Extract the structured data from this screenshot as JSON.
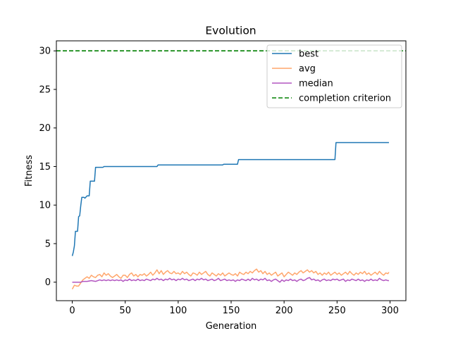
{
  "chart_data": {
    "type": "line",
    "title": "Evolution",
    "xlabel": "Generation",
    "ylabel": "Fitness",
    "xlim": [
      -15,
      315
    ],
    "ylim": [
      -2.4,
      31.3
    ],
    "xticks": [
      0,
      50,
      100,
      150,
      200,
      250,
      300
    ],
    "yticks": [
      0,
      5,
      10,
      15,
      20,
      25,
      30
    ],
    "grid": false,
    "legend_position": "top-right",
    "threshold": {
      "name": "completion criterion",
      "value": 30,
      "color": "#008000",
      "style": "dashed"
    },
    "series": [
      {
        "name": "best",
        "color": "#1f77b4",
        "points": [
          [
            0,
            3.4
          ],
          [
            1,
            3.9
          ],
          [
            2,
            4.7
          ],
          [
            3,
            6.6
          ],
          [
            5,
            6.6
          ],
          [
            6,
            8.5
          ],
          [
            7,
            8.6
          ],
          [
            8,
            9.9
          ],
          [
            9,
            11.0
          ],
          [
            11,
            11.0
          ],
          [
            12,
            10.9
          ],
          [
            14,
            11.2
          ],
          [
            16,
            11.2
          ],
          [
            17,
            13.1
          ],
          [
            21,
            13.1
          ],
          [
            22,
            14.9
          ],
          [
            29,
            14.9
          ],
          [
            30,
            15.0
          ],
          [
            80,
            15.0
          ],
          [
            81,
            15.2
          ],
          [
            142,
            15.2
          ],
          [
            143,
            15.3
          ],
          [
            156,
            15.3
          ],
          [
            157,
            15.9
          ],
          [
            248,
            15.9
          ],
          [
            249,
            18.1
          ],
          [
            299,
            18.1
          ]
        ]
      },
      {
        "name": "avg",
        "color": "#ffa66c",
        "points": [
          [
            0,
            -0.9
          ],
          [
            2,
            -0.4
          ],
          [
            4,
            -0.5
          ],
          [
            6,
            -0.5
          ],
          [
            8,
            -0.1
          ],
          [
            10,
            0.3
          ],
          [
            12,
            0.5
          ],
          [
            14,
            0.7
          ],
          [
            16,
            0.5
          ],
          [
            18,
            0.9
          ],
          [
            20,
            0.7
          ],
          [
            22,
            0.6
          ],
          [
            24,
            0.9
          ],
          [
            26,
            1.0
          ],
          [
            28,
            0.7
          ],
          [
            30,
            1.2
          ],
          [
            32,
            0.9
          ],
          [
            34,
            1.1
          ],
          [
            36,
            0.8
          ],
          [
            38,
            0.6
          ],
          [
            40,
            0.8
          ],
          [
            42,
            1.0
          ],
          [
            44,
            0.7
          ],
          [
            46,
            0.5
          ],
          [
            48,
            0.9
          ],
          [
            50,
            0.9
          ],
          [
            52,
            0.6
          ],
          [
            54,
            1.0
          ],
          [
            56,
            1.2
          ],
          [
            58,
            0.8
          ],
          [
            60,
            1.0
          ],
          [
            62,
            0.7
          ],
          [
            64,
            1.0
          ],
          [
            66,
            0.9
          ],
          [
            68,
            1.1
          ],
          [
            70,
            0.8
          ],
          [
            72,
            1.0
          ],
          [
            74,
            1.3
          ],
          [
            76,
            0.9
          ],
          [
            78,
            1.2
          ],
          [
            80,
            1.6
          ],
          [
            82,
            1.1
          ],
          [
            84,
            1.5
          ],
          [
            86,
            1.0
          ],
          [
            88,
            1.3
          ],
          [
            90,
            1.5
          ],
          [
            92,
            1.2
          ],
          [
            94,
            1.1
          ],
          [
            96,
            1.4
          ],
          [
            98,
            1.1
          ],
          [
            100,
            1.2
          ],
          [
            102,
            1.0
          ],
          [
            104,
            1.4
          ],
          [
            106,
            1.1
          ],
          [
            108,
            1.3
          ],
          [
            110,
            1.0
          ],
          [
            112,
            0.8
          ],
          [
            114,
            1.2
          ],
          [
            116,
            1.1
          ],
          [
            118,
            0.9
          ],
          [
            120,
            1.3
          ],
          [
            122,
            1.0
          ],
          [
            124,
            1.2
          ],
          [
            126,
            1.4
          ],
          [
            128,
            1.0
          ],
          [
            130,
            0.8
          ],
          [
            132,
            1.2
          ],
          [
            134,
            1.0
          ],
          [
            136,
            0.8
          ],
          [
            138,
            1.1
          ],
          [
            140,
            0.9
          ],
          [
            142,
            1.2
          ],
          [
            144,
            0.8
          ],
          [
            146,
            1.0
          ],
          [
            148,
            1.2
          ],
          [
            150,
            1.0
          ],
          [
            152,
            0.9
          ],
          [
            154,
            1.1
          ],
          [
            156,
            0.8
          ],
          [
            158,
            1.3
          ],
          [
            160,
            1.1
          ],
          [
            162,
            1.0
          ],
          [
            164,
            1.3
          ],
          [
            166,
            1.1
          ],
          [
            168,
            1.4
          ],
          [
            170,
            1.2
          ],
          [
            172,
            1.5
          ],
          [
            174,
            1.7
          ],
          [
            176,
            1.3
          ],
          [
            178,
            1.5
          ],
          [
            180,
            1.1
          ],
          [
            182,
            1.4
          ],
          [
            184,
            1.0
          ],
          [
            186,
            1.2
          ],
          [
            188,
            0.9
          ],
          [
            190,
            1.1
          ],
          [
            192,
            1.3
          ],
          [
            194,
            0.8
          ],
          [
            196,
            1.0
          ],
          [
            198,
            1.2
          ],
          [
            200,
            0.7
          ],
          [
            202,
            1.0
          ],
          [
            204,
            1.3
          ],
          [
            206,
            1.1
          ],
          [
            208,
            0.9
          ],
          [
            210,
            1.2
          ],
          [
            212,
            1.0
          ],
          [
            214,
            1.3
          ],
          [
            216,
            1.5
          ],
          [
            218,
            1.2
          ],
          [
            220,
            1.4
          ],
          [
            222,
            1.6
          ],
          [
            224,
            1.3
          ],
          [
            226,
            1.5
          ],
          [
            228,
            1.2
          ],
          [
            230,
            1.4
          ],
          [
            232,
            1.0
          ],
          [
            234,
            1.2
          ],
          [
            236,
            0.9
          ],
          [
            238,
            1.2
          ],
          [
            240,
            1.0
          ],
          [
            242,
            1.3
          ],
          [
            244,
            0.9
          ],
          [
            246,
            1.1
          ],
          [
            248,
            1.3
          ],
          [
            250,
            1.0
          ],
          [
            252,
            1.2
          ],
          [
            254,
            0.9
          ],
          [
            256,
            1.1
          ],
          [
            258,
            1.3
          ],
          [
            260,
            1.0
          ],
          [
            262,
            1.4
          ],
          [
            264,
            1.1
          ],
          [
            266,
            0.9
          ],
          [
            268,
            1.2
          ],
          [
            270,
            1.0
          ],
          [
            272,
            1.3
          ],
          [
            274,
            1.1
          ],
          [
            276,
            1.4
          ],
          [
            278,
            1.0
          ],
          [
            280,
            1.2
          ],
          [
            282,
            0.9
          ],
          [
            284,
            1.1
          ],
          [
            286,
            1.3
          ],
          [
            288,
            1.0
          ],
          [
            290,
            1.4
          ],
          [
            292,
            1.1
          ],
          [
            294,
            0.9
          ],
          [
            296,
            1.2
          ],
          [
            298,
            1.1
          ],
          [
            299,
            1.3
          ]
        ]
      },
      {
        "name": "median",
        "color": "#b255c0",
        "points": [
          [
            0,
            0.0
          ],
          [
            4,
            0.0
          ],
          [
            8,
            0.0
          ],
          [
            10,
            0.1
          ],
          [
            14,
            0.1
          ],
          [
            18,
            0.2
          ],
          [
            22,
            0.1
          ],
          [
            24,
            0.2
          ],
          [
            26,
            0.3
          ],
          [
            28,
            0.2
          ],
          [
            30,
            0.3
          ],
          [
            32,
            0.2
          ],
          [
            34,
            0.3
          ],
          [
            36,
            0.2
          ],
          [
            38,
            0.3
          ],
          [
            40,
            0.2
          ],
          [
            42,
            0.3
          ],
          [
            44,
            0.2
          ],
          [
            46,
            0.3
          ],
          [
            48,
            0.1
          ],
          [
            50,
            0.3
          ],
          [
            52,
            0.2
          ],
          [
            54,
            0.4
          ],
          [
            56,
            0.2
          ],
          [
            58,
            0.3
          ],
          [
            60,
            0.2
          ],
          [
            62,
            0.4
          ],
          [
            64,
            0.2
          ],
          [
            66,
            0.3
          ],
          [
            68,
            0.2
          ],
          [
            70,
            0.4
          ],
          [
            72,
            0.3
          ],
          [
            74,
            0.2
          ],
          [
            76,
            0.4
          ],
          [
            78,
            0.3
          ],
          [
            80,
            0.5
          ],
          [
            82,
            0.3
          ],
          [
            84,
            0.4
          ],
          [
            86,
            0.2
          ],
          [
            88,
            0.4
          ],
          [
            90,
            0.3
          ],
          [
            92,
            0.5
          ],
          [
            94,
            0.3
          ],
          [
            96,
            0.4
          ],
          [
            98,
            0.2
          ],
          [
            100,
            0.4
          ],
          [
            102,
            0.3
          ],
          [
            104,
            0.5
          ],
          [
            106,
            0.3
          ],
          [
            108,
            0.4
          ],
          [
            110,
            0.2
          ],
          [
            112,
            0.3
          ],
          [
            114,
            0.4
          ],
          [
            116,
            0.2
          ],
          [
            118,
            0.4
          ],
          [
            120,
            0.3
          ],
          [
            122,
            0.5
          ],
          [
            124,
            0.3
          ],
          [
            126,
            0.4
          ],
          [
            128,
            0.2
          ],
          [
            130,
            0.3
          ],
          [
            132,
            0.4
          ],
          [
            134,
            0.2
          ],
          [
            136,
            0.3
          ],
          [
            138,
            0.5
          ],
          [
            140,
            0.2
          ],
          [
            142,
            0.3
          ],
          [
            144,
            0.4
          ],
          [
            146,
            0.2
          ],
          [
            148,
            0.3
          ],
          [
            150,
            0.2
          ],
          [
            152,
            0.3
          ],
          [
            154,
            0.1
          ],
          [
            156,
            0.3
          ],
          [
            158,
            0.2
          ],
          [
            160,
            0.4
          ],
          [
            162,
            0.3
          ],
          [
            164,
            0.2
          ],
          [
            166,
            0.4
          ],
          [
            168,
            0.2
          ],
          [
            170,
            0.5
          ],
          [
            172,
            0.3
          ],
          [
            174,
            0.4
          ],
          [
            176,
            0.2
          ],
          [
            178,
            0.4
          ],
          [
            180,
            0.3
          ],
          [
            182,
            0.5
          ],
          [
            184,
            0.2
          ],
          [
            186,
            0.3
          ],
          [
            188,
            0.1
          ],
          [
            190,
            0.3
          ],
          [
            192,
            0.4
          ],
          [
            194,
            0.2
          ],
          [
            196,
            0.0
          ],
          [
            198,
            0.3
          ],
          [
            200,
            0.1
          ],
          [
            202,
            0.3
          ],
          [
            204,
            0.2
          ],
          [
            206,
            0.4
          ],
          [
            208,
            0.2
          ],
          [
            210,
            0.3
          ],
          [
            212,
            0.1
          ],
          [
            214,
            0.3
          ],
          [
            216,
            0.4
          ],
          [
            218,
            0.2
          ],
          [
            220,
            0.3
          ],
          [
            222,
            0.5
          ],
          [
            224,
            0.6
          ],
          [
            226,
            0.3
          ],
          [
            228,
            0.4
          ],
          [
            230,
            0.2
          ],
          [
            232,
            0.3
          ],
          [
            234,
            0.1
          ],
          [
            236,
            0.3
          ],
          [
            238,
            0.4
          ],
          [
            240,
            0.2
          ],
          [
            242,
            0.3
          ],
          [
            244,
            0.2
          ],
          [
            246,
            0.4
          ],
          [
            248,
            0.3
          ],
          [
            250,
            0.4
          ],
          [
            252,
            0.2
          ],
          [
            254,
            0.3
          ],
          [
            256,
            0.4
          ],
          [
            258,
            0.1
          ],
          [
            260,
            0.3
          ],
          [
            262,
            0.2
          ],
          [
            264,
            0.4
          ],
          [
            266,
            0.3
          ],
          [
            268,
            0.2
          ],
          [
            270,
            0.4
          ],
          [
            272,
            0.2
          ],
          [
            274,
            0.3
          ],
          [
            276,
            0.1
          ],
          [
            278,
            0.3
          ],
          [
            280,
            0.2
          ],
          [
            282,
            0.4
          ],
          [
            284,
            0.2
          ],
          [
            286,
            0.3
          ],
          [
            288,
            0.2
          ],
          [
            290,
            0.5
          ],
          [
            292,
            0.3
          ],
          [
            294,
            0.2
          ],
          [
            296,
            0.3
          ],
          [
            298,
            0.2
          ],
          [
            299,
            0.2
          ]
        ]
      }
    ]
  }
}
